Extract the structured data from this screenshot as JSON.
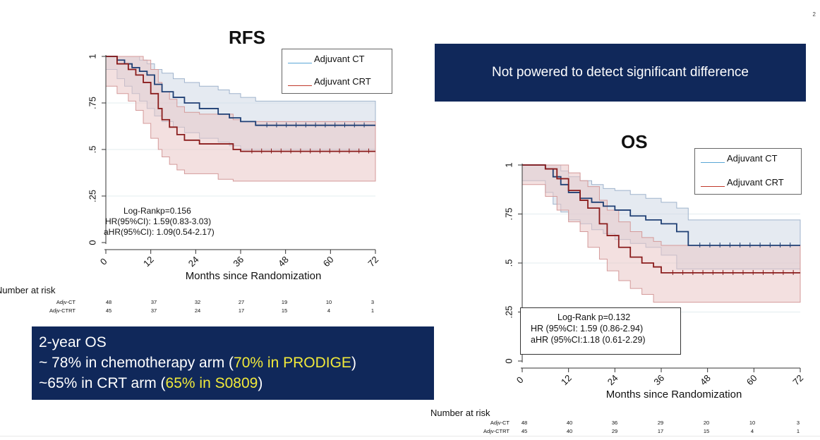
{
  "page_number": "2",
  "banner_text": "Not powered to detect significant difference",
  "os_summary": {
    "title": "2-year OS",
    "line1_prefix": "~ 78% in chemotherapy arm (",
    "line1_highlight": "70% in PRODIGE",
    "line1_suffix": ")",
    "line2_prefix": "~65% in CRT arm (",
    "line2_highlight": "65% in S0809",
    "line2_suffix": ")"
  },
  "colors": {
    "ct": "#1f3f74",
    "crt": "#8a1c1c",
    "ct_band": "#cfd8e6",
    "crt_band": "#e9c7c7",
    "banner": "#10285a",
    "highlight": "#f0e93a"
  },
  "chart_data": [
    {
      "type": "line",
      "title": "RFS",
      "xlabel": "Months since Randomization",
      "ylabel": "",
      "xlim": [
        0,
        72
      ],
      "ylim": [
        0,
        1
      ],
      "x_ticks": [
        "0",
        "12",
        "24",
        "36",
        "48",
        "60",
        "72"
      ],
      "y_ticks": [
        "0",
        ".25",
        ".5",
        ".75",
        "1"
      ],
      "legend": [
        "Adjuvant CT",
        "Adjuvant CRT"
      ],
      "legend_placement": "top-right",
      "stats": [
        "Log-Rankp=0.156",
        "HR(95%CI): 1.59(0.83-3.03)",
        "aHR(95%CI): 1.09(0.54-2.17)"
      ],
      "series": [
        {
          "name": "Adjuvant CT",
          "x": [
            0,
            3,
            5,
            7,
            9,
            11,
            13,
            15,
            18,
            21,
            25,
            30,
            33,
            36,
            40,
            72
          ],
          "y": [
            1,
            0.98,
            0.96,
            0.94,
            0.92,
            0.9,
            0.85,
            0.81,
            0.78,
            0.75,
            0.72,
            0.69,
            0.67,
            0.65,
            0.63,
            0.63
          ],
          "lower": [
            1,
            0.93,
            0.88,
            0.84,
            0.8,
            0.76,
            0.72,
            0.68,
            0.65,
            0.62,
            0.59,
            0.56,
            0.54,
            0.52,
            0.5,
            0.5
          ],
          "upper": [
            1,
            1,
            1,
            1,
            0.98,
            0.96,
            0.93,
            0.91,
            0.88,
            0.86,
            0.84,
            0.82,
            0.8,
            0.78,
            0.76,
            0.76
          ]
        },
        {
          "name": "Adjuvant CRT",
          "x": [
            0,
            3,
            6,
            8,
            10,
            12,
            14,
            15,
            17,
            19,
            21,
            25,
            30,
            34,
            36,
            72
          ],
          "y": [
            1,
            0.96,
            0.93,
            0.9,
            0.86,
            0.8,
            0.72,
            0.66,
            0.62,
            0.58,
            0.55,
            0.53,
            0.53,
            0.5,
            0.49,
            0.49
          ],
          "lower": [
            0.86,
            0.84,
            0.8,
            0.76,
            0.71,
            0.64,
            0.56,
            0.5,
            0.46,
            0.42,
            0.39,
            0.37,
            0.37,
            0.34,
            0.33,
            0.33
          ],
          "upper": [
            1,
            1,
            1,
            1,
            0.98,
            0.93,
            0.86,
            0.81,
            0.77,
            0.73,
            0.7,
            0.69,
            0.69,
            0.66,
            0.65,
            0.65
          ]
        }
      ],
      "risk_table": {
        "title": "Number at risk",
        "rows": [
          {
            "label": "Adjv-CT",
            "values": [
              "48",
              "37",
              "32",
              "27",
              "19",
              "10",
              "3"
            ]
          },
          {
            "label": "Adjv-CTRT",
            "values": [
              "45",
              "37",
              "24",
              "17",
              "15",
              "4",
              "1"
            ]
          }
        ]
      }
    },
    {
      "type": "line",
      "title": "OS",
      "xlabel": "Months since Randomization",
      "ylabel": "",
      "xlim": [
        0,
        72
      ],
      "ylim": [
        0,
        1
      ],
      "x_ticks": [
        "0",
        "12",
        "24",
        "36",
        "48",
        "60",
        "72"
      ],
      "y_ticks": [
        "0",
        ".25",
        ".5",
        ".75",
        "1"
      ],
      "legend": [
        "Adjuvant CT",
        "Adjuvant CRT"
      ],
      "legend_placement": "top-right",
      "stats": [
        "Log-Rank p=0.132",
        "HR  (95%CI: 1.59 (0.86-2.94)",
        "aHR (95%CI:1.18 (0.61-2.29)"
      ],
      "series": [
        {
          "name": "Adjuvant CT",
          "x": [
            0,
            6,
            8,
            10,
            12,
            15,
            18,
            21,
            24,
            28,
            32,
            36,
            40,
            43,
            72
          ],
          "y": [
            1,
            0.98,
            0.94,
            0.9,
            0.86,
            0.83,
            0.81,
            0.79,
            0.77,
            0.74,
            0.72,
            0.7,
            0.66,
            0.59,
            0.59
          ],
          "lower": [
            1,
            0.92,
            0.86,
            0.8,
            0.76,
            0.72,
            0.7,
            0.67,
            0.65,
            0.62,
            0.6,
            0.58,
            0.54,
            0.47,
            0.47
          ],
          "upper": [
            1,
            1,
            1,
            0.97,
            0.94,
            0.92,
            0.9,
            0.88,
            0.87,
            0.85,
            0.83,
            0.81,
            0.78,
            0.72,
            0.72
          ]
        },
        {
          "name": "Adjuvant CRT",
          "x": [
            0,
            6,
            9,
            12,
            15,
            17,
            20,
            22,
            25,
            28,
            31,
            34,
            36,
            72
          ],
          "y": [
            1,
            0.98,
            0.93,
            0.87,
            0.82,
            0.78,
            0.7,
            0.64,
            0.58,
            0.53,
            0.5,
            0.48,
            0.45,
            0.45
          ],
          "lower": [
            1,
            0.9,
            0.84,
            0.77,
            0.71,
            0.66,
            0.58,
            0.52,
            0.46,
            0.41,
            0.37,
            0.34,
            0.3,
            0.3
          ],
          "upper": [
            1,
            1,
            1,
            0.96,
            0.92,
            0.89,
            0.82,
            0.77,
            0.71,
            0.66,
            0.63,
            0.61,
            0.59,
            0.59
          ]
        }
      ],
      "risk_table": {
        "title": "Number at risk",
        "rows": [
          {
            "label": "Adjv-CT",
            "values": [
              "48",
              "40",
              "36",
              "29",
              "20",
              "10",
              "3"
            ]
          },
          {
            "label": "Adjv-CTRT",
            "values": [
              "45",
              "40",
              "29",
              "17",
              "15",
              "4",
              "1"
            ]
          }
        ]
      }
    }
  ]
}
